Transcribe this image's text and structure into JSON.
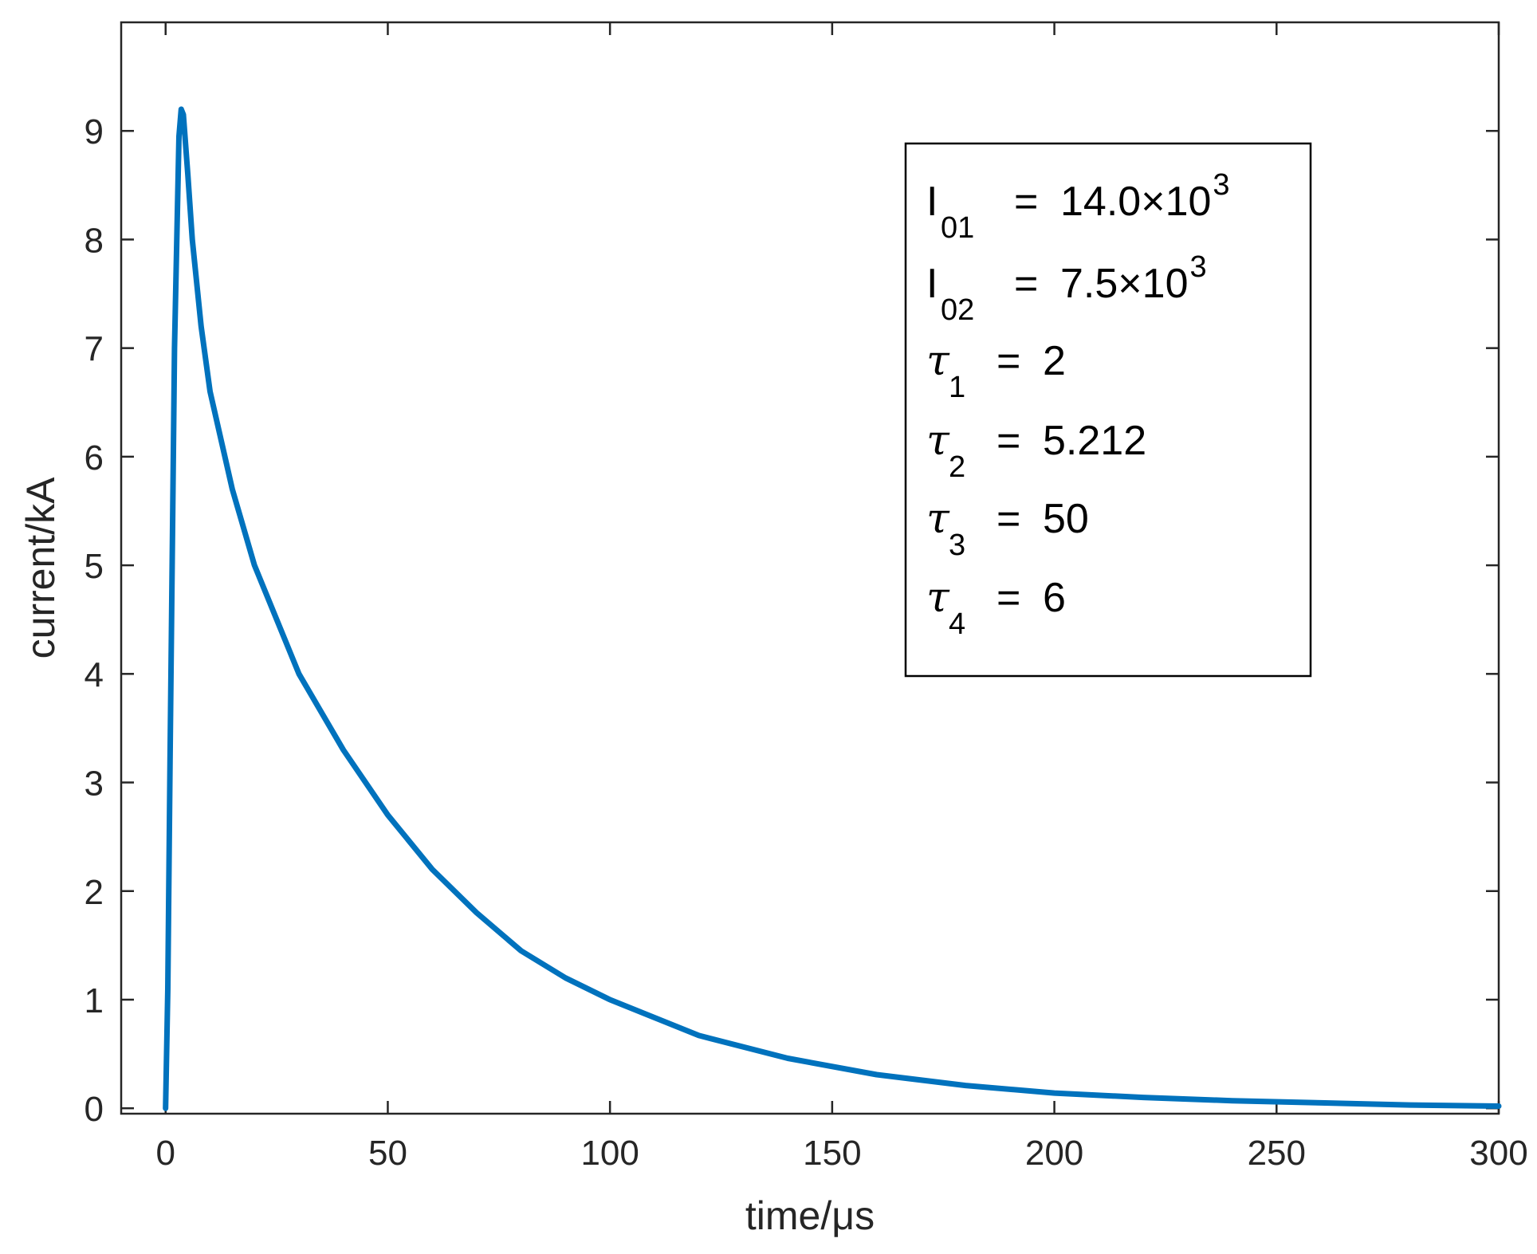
{
  "chart_data": {
    "type": "line",
    "xlabel": "time/μs",
    "ylabel": "current/kA",
    "xlim": [
      -10,
      300
    ],
    "ylim": [
      -0.05,
      10.0
    ],
    "xticks": [
      0,
      50,
      100,
      150,
      200,
      250,
      300
    ],
    "yticks": [
      0,
      1,
      2,
      3,
      4,
      5,
      6,
      7,
      8,
      9
    ],
    "grid": false,
    "line_color": "#0072BD",
    "series": [
      {
        "x": [
          0,
          0.5,
          1,
          2,
          3,
          3.5,
          4,
          5,
          6,
          8,
          10,
          15,
          20,
          25,
          30,
          40,
          50,
          60,
          70,
          80,
          90,
          100,
          120,
          140,
          160,
          180,
          200,
          220,
          240,
          260,
          280,
          300
        ],
        "values": [
          0,
          1.1,
          3.2,
          7.0,
          8.95,
          9.2,
          9.15,
          8.6,
          8.0,
          7.2,
          6.6,
          5.7,
          5.0,
          4.5,
          4.0,
          3.3,
          2.7,
          2.2,
          1.8,
          1.45,
          1.2,
          1.0,
          0.67,
          0.46,
          0.31,
          0.21,
          0.14,
          0.1,
          0.07,
          0.05,
          0.03,
          0.02
        ]
      }
    ],
    "legend_position": "top-right",
    "annotation": [
      {
        "sym": "I",
        "greek": false,
        "sub": "01",
        "val": "14.0×10",
        "sup": "3"
      },
      {
        "sym": "I",
        "greek": false,
        "sub": "02",
        "val": "7.5×10",
        "sup": "3"
      },
      {
        "sym": "τ",
        "greek": true,
        "sub": "1",
        "val": "2",
        "sup": ""
      },
      {
        "sym": "τ",
        "greek": true,
        "sub": "2",
        "val": "5.212",
        "sup": ""
      },
      {
        "sym": "τ",
        "greek": true,
        "sub": "3",
        "val": "50",
        "sup": ""
      },
      {
        "sym": "τ",
        "greek": true,
        "sub": "4",
        "val": "6",
        "sup": ""
      }
    ]
  }
}
